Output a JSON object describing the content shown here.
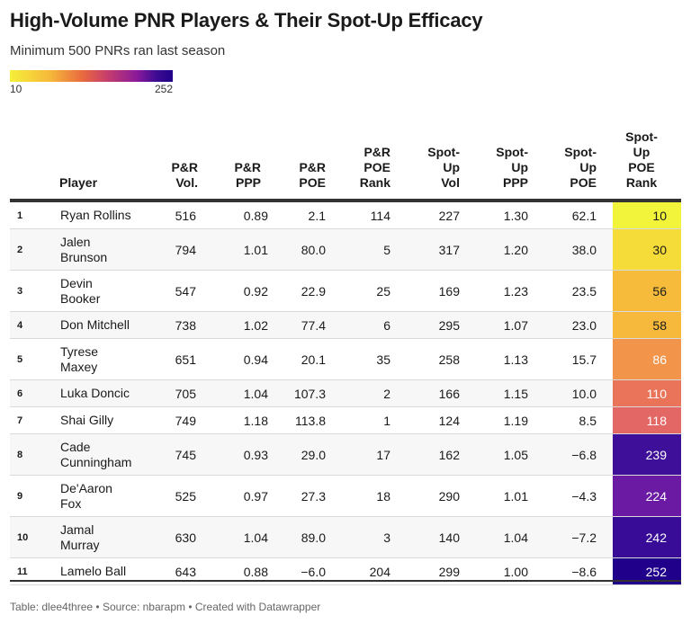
{
  "title": "High-Volume PNR Players & Their Spot-Up Efficacy",
  "subtitle": "Minimum 500 PNRs ran last season",
  "legend": {
    "min": "10",
    "max": "252"
  },
  "headers": {
    "player": "Player",
    "pr_vol": [
      "P&R",
      "Vol."
    ],
    "pr_ppp": [
      "P&R",
      "PPP"
    ],
    "pr_poe": [
      "P&R",
      "POE"
    ],
    "pr_poe_rank": [
      "P&R",
      "POE",
      "Rank"
    ],
    "su_vol": [
      "Spot-",
      "Up",
      "Vol"
    ],
    "su_ppp": [
      "Spot-",
      "Up",
      "PPP"
    ],
    "su_poe": [
      "Spot-",
      "Up",
      "POE"
    ],
    "su_poe_rank": [
      "Spot-",
      "Up",
      "POE",
      "Rank"
    ]
  },
  "rows": [
    {
      "rank": "1",
      "player": [
        "Ryan Rollins"
      ],
      "pr_vol": "516",
      "pr_ppp": "0.89",
      "pr_poe": "2.1",
      "pr_poe_rank": "114",
      "su_vol": "227",
      "su_ppp": "1.30",
      "su_poe": "62.1",
      "su_poe_rank": "10",
      "color": "#f1f43a",
      "text_color": "#1a1a1a"
    },
    {
      "rank": "2",
      "player": [
        "Jalen",
        "Brunson"
      ],
      "pr_vol": "794",
      "pr_ppp": "1.01",
      "pr_poe": "80.0",
      "pr_poe_rank": "5",
      "su_vol": "317",
      "su_ppp": "1.20",
      "su_poe": "38.0",
      "su_poe_rank": "30",
      "color": "#f5dc38",
      "text_color": "#1a1a1a"
    },
    {
      "rank": "3",
      "player": [
        "Devin",
        "Booker"
      ],
      "pr_vol": "547",
      "pr_ppp": "0.92",
      "pr_poe": "22.9",
      "pr_poe_rank": "25",
      "su_vol": "169",
      "su_ppp": "1.23",
      "su_poe": "23.5",
      "su_poe_rank": "56",
      "color": "#f6bb3b",
      "text_color": "#1a1a1a"
    },
    {
      "rank": "4",
      "player": [
        "Don Mitchell"
      ],
      "pr_vol": "738",
      "pr_ppp": "1.02",
      "pr_poe": "77.4",
      "pr_poe_rank": "6",
      "su_vol": "295",
      "su_ppp": "1.07",
      "su_poe": "23.0",
      "su_poe_rank": "58",
      "color": "#f6b93b",
      "text_color": "#1a1a1a"
    },
    {
      "rank": "5",
      "player": [
        "Tyrese",
        "Maxey"
      ],
      "pr_vol": "651",
      "pr_ppp": "0.94",
      "pr_poe": "20.1",
      "pr_poe_rank": "35",
      "su_vol": "258",
      "su_ppp": "1.13",
      "su_poe": "15.7",
      "su_poe_rank": "86",
      "color": "#f2944a",
      "text_color": "#ffffff"
    },
    {
      "rank": "6",
      "player": [
        "Luka Doncic"
      ],
      "pr_vol": "705",
      "pr_ppp": "1.04",
      "pr_poe": "107.3",
      "pr_poe_rank": "2",
      "su_vol": "166",
      "su_ppp": "1.15",
      "su_poe": "10.0",
      "su_poe_rank": "110",
      "color": "#e9745a",
      "text_color": "#ffffff"
    },
    {
      "rank": "7",
      "player": [
        "Shai Gilly"
      ],
      "pr_vol": "749",
      "pr_ppp": "1.18",
      "pr_poe": "113.8",
      "pr_poe_rank": "1",
      "su_vol": "124",
      "su_ppp": "1.19",
      "su_poe": "8.5",
      "su_poe_rank": "118",
      "color": "#e26765",
      "text_color": "#ffffff"
    },
    {
      "rank": "8",
      "player": [
        "Cade",
        "Cunningham"
      ],
      "pr_vol": "745",
      "pr_ppp": "0.93",
      "pr_poe": "29.0",
      "pr_poe_rank": "17",
      "su_vol": "162",
      "su_ppp": "1.05",
      "su_poe": "−6.8",
      "su_poe_rank": "239",
      "color": "#3e0f99",
      "text_color": "#ffffff"
    },
    {
      "rank": "9",
      "player": [
        "De'Aaron",
        "Fox"
      ],
      "pr_vol": "525",
      "pr_ppp": "0.97",
      "pr_poe": "27.3",
      "pr_poe_rank": "18",
      "su_vol": "290",
      "su_ppp": "1.01",
      "su_poe": "−4.3",
      "su_poe_rank": "224",
      "color": "#6a1aa3",
      "text_color": "#ffffff"
    },
    {
      "rank": "10",
      "player": [
        "Jamal",
        "Murray"
      ],
      "pr_vol": "630",
      "pr_ppp": "1.04",
      "pr_poe": "89.0",
      "pr_poe_rank": "3",
      "su_vol": "140",
      "su_ppp": "1.04",
      "su_poe": "−7.2",
      "su_poe_rank": "242",
      "color": "#380c97",
      "text_color": "#ffffff"
    },
    {
      "rank": "11",
      "player": [
        "Lamelo Ball"
      ],
      "pr_vol": "643",
      "pr_ppp": "0.88",
      "pr_poe": "−6.0",
      "pr_poe_rank": "204",
      "su_vol": "299",
      "su_ppp": "1.00",
      "su_poe": "−8.6",
      "su_poe_rank": "252",
      "color": "#20008a",
      "text_color": "#ffffff"
    }
  ],
  "footer": "Table: dlee4three • Source: nbarapm • Created with Datawrapper"
}
